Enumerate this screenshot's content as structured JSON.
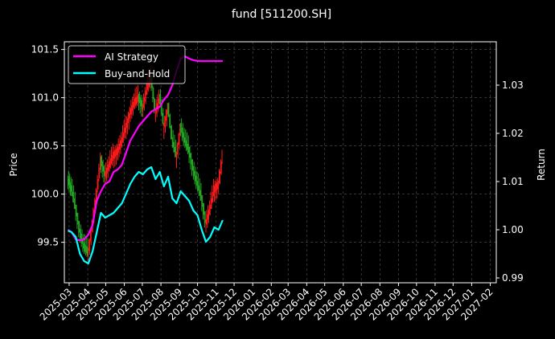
{
  "chart_data": {
    "type": "line",
    "title": "fund [511200.SH]",
    "ylabel": "Price",
    "y2label": "Return",
    "ylim": [
      99.08,
      101.58
    ],
    "y2lim": [
      0.989,
      1.039
    ],
    "yticks": [
      "99.5",
      "100.0",
      "100.5",
      "101.0",
      "101.5"
    ],
    "y2ticks": [
      "0.99",
      "1.00",
      "1.01",
      "1.02",
      "1.03"
    ],
    "xticks": [
      "2025-03",
      "2025-04",
      "2025-05",
      "2025-06",
      "2025-07",
      "2025-08",
      "2025-09",
      "2025-10",
      "2025-11",
      "2025-12",
      "2026-01",
      "2026-02",
      "2026-03",
      "2026-04",
      "2026-05",
      "2026-06",
      "2026-07",
      "2026-08",
      "2026-09",
      "2026-10",
      "2026-11",
      "2026-12",
      "2027-01",
      "2027-02"
    ],
    "xlim": [
      "2025-02-21",
      "2027-02-11"
    ],
    "grid": true,
    "legend_position": "upper-left",
    "series": [
      {
        "name": "AI Strategy",
        "axis": "right",
        "color": "#ff00ff",
        "x": [
          "2025-02-27",
          "2025-03-05",
          "2025-03-12",
          "2025-03-19",
          "2025-03-26",
          "2025-04-02",
          "2025-04-09",
          "2025-04-16",
          "2025-04-23",
          "2025-04-30",
          "2025-05-07",
          "2025-05-14",
          "2025-05-21",
          "2025-05-28",
          "2025-06-04",
          "2025-06-11",
          "2025-06-18",
          "2025-06-25",
          "2025-07-02",
          "2025-07-09",
          "2025-07-16",
          "2025-07-23",
          "2025-07-30",
          "2025-08-06",
          "2025-08-13",
          "2025-08-20",
          "2025-08-27",
          "2025-09-03",
          "2025-09-10",
          "2025-09-17",
          "2025-09-24",
          "2025-10-01",
          "2025-10-08",
          "2025-10-15",
          "2025-10-22",
          "2025-10-29",
          "2025-11-05",
          "2025-11-12"
        ],
        "values": [
          1.0,
          0.9995,
          0.998,
          0.9978,
          0.998,
          0.999,
          1.001,
          1.006,
          1.008,
          1.0095,
          1.01,
          1.012,
          1.0125,
          1.0135,
          1.016,
          1.0185,
          1.02,
          1.0215,
          1.0225,
          1.0235,
          1.0245,
          1.025,
          1.0255,
          1.027,
          1.028,
          1.03,
          1.033,
          1.0355,
          1.036,
          1.0355,
          1.0352,
          1.035,
          1.035,
          1.035,
          1.035,
          1.035,
          1.035,
          1.035
        ]
      },
      {
        "name": "Buy-and-Hold",
        "axis": "right",
        "color": "#00ffff",
        "x": [
          "2025-02-27",
          "2025-03-05",
          "2025-03-12",
          "2025-03-19",
          "2025-03-26",
          "2025-04-02",
          "2025-04-09",
          "2025-04-16",
          "2025-04-23",
          "2025-04-30",
          "2025-05-07",
          "2025-05-14",
          "2025-05-21",
          "2025-05-28",
          "2025-06-04",
          "2025-06-11",
          "2025-06-18",
          "2025-06-25",
          "2025-07-02",
          "2025-07-09",
          "2025-07-16",
          "2025-07-23",
          "2025-07-30",
          "2025-08-06",
          "2025-08-13",
          "2025-08-20",
          "2025-08-27",
          "2025-09-03",
          "2025-09-10",
          "2025-09-17",
          "2025-09-24",
          "2025-10-01",
          "2025-10-08",
          "2025-10-15",
          "2025-10-22",
          "2025-10-29",
          "2025-11-05",
          "2025-11-12"
        ],
        "values": [
          0.9998,
          0.9995,
          0.9985,
          0.995,
          0.9935,
          0.993,
          0.9955,
          0.9995,
          1.0035,
          1.0025,
          1.003,
          1.0035,
          1.0045,
          1.0055,
          1.0075,
          1.0095,
          1.011,
          1.012,
          1.0115,
          1.0125,
          1.013,
          1.0105,
          1.012,
          1.009,
          1.011,
          1.0065,
          1.0055,
          1.008,
          1.007,
          1.006,
          1.004,
          1.003,
          1.0,
          0.9975,
          0.9985,
          1.0005,
          1.0,
          1.002
        ]
      },
      {
        "name": "Price",
        "axis": "left",
        "style": "bars",
        "up_color": "#ff1a1a",
        "down_color": "#22aa22",
        "x": [
          "2025-02-27",
          "2025-03-05",
          "2025-03-12",
          "2025-03-19",
          "2025-03-26",
          "2025-04-02",
          "2025-04-09",
          "2025-04-16",
          "2025-04-23",
          "2025-04-30",
          "2025-05-07",
          "2025-05-14",
          "2025-05-21",
          "2025-05-28",
          "2025-06-04",
          "2025-06-11",
          "2025-06-18",
          "2025-06-25",
          "2025-07-02",
          "2025-07-09",
          "2025-07-16",
          "2025-07-23",
          "2025-07-30",
          "2025-08-06",
          "2025-08-13",
          "2025-08-20",
          "2025-08-27",
          "2025-09-03",
          "2025-09-10",
          "2025-09-17",
          "2025-09-24",
          "2025-10-01",
          "2025-10-08",
          "2025-10-15",
          "2025-10-22",
          "2025-10-29",
          "2025-11-05",
          "2025-11-12"
        ],
        "values": [
          100.15,
          100.05,
          99.85,
          99.6,
          99.45,
          99.4,
          99.7,
          100.0,
          100.35,
          100.2,
          100.3,
          100.4,
          100.45,
          100.55,
          100.7,
          100.85,
          100.95,
          101.0,
          100.9,
          101.1,
          101.2,
          100.85,
          101.0,
          100.7,
          100.9,
          100.55,
          100.4,
          100.7,
          100.55,
          100.45,
          100.25,
          100.1,
          99.95,
          99.7,
          99.85,
          100.05,
          100.1,
          100.4
        ]
      }
    ]
  }
}
